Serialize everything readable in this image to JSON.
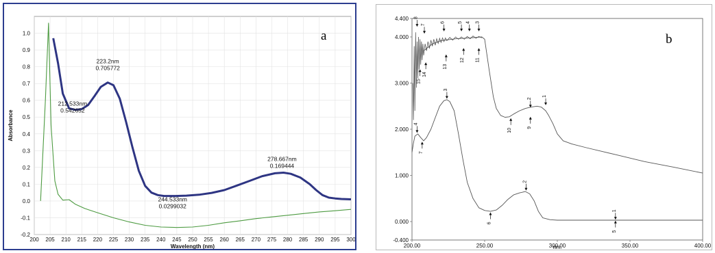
{
  "chart_data": [
    {
      "type": "line",
      "panel_label": "a",
      "xlabel": "Wavelength (nm)",
      "ylabel": "Absorbance",
      "xlim": [
        200,
        300
      ],
      "ylim": [
        -0.2,
        1.1
      ],
      "x_ticks": [
        "200",
        "205",
        "210",
        "215",
        "220",
        "225",
        "230",
        "235",
        "240",
        "245",
        "250",
        "255",
        "260",
        "265",
        "270",
        "275",
        "280",
        "285",
        "290",
        "295",
        "300"
      ],
      "y_ticks": [
        "-0.2",
        "-0.1",
        "0.0",
        "0.1",
        "0.2",
        "0.3",
        "0.4",
        "0.5",
        "0.6",
        "0.7",
        "0.8",
        "0.9",
        "1.0"
      ],
      "grid": true,
      "series": [
        {
          "color": "#2e3583",
          "x": [
            206,
            207.5,
            209,
            211,
            213,
            215,
            217,
            219,
            221,
            223.2,
            225,
            227,
            229,
            231,
            233,
            235,
            237,
            239,
            241,
            244.5,
            248,
            252,
            256,
            260,
            264,
            268,
            272,
            276,
            278.7,
            281,
            284,
            287,
            289,
            291,
            293,
            295,
            297,
            300
          ],
          "y": [
            0.97,
            0.82,
            0.64,
            0.552,
            0.543,
            0.548,
            0.572,
            0.625,
            0.68,
            0.706,
            0.69,
            0.61,
            0.47,
            0.32,
            0.18,
            0.09,
            0.05,
            0.035,
            0.03,
            0.0299,
            0.032,
            0.037,
            0.048,
            0.065,
            0.092,
            0.12,
            0.148,
            0.165,
            0.169,
            0.162,
            0.14,
            0.1,
            0.065,
            0.035,
            0.02,
            0.015,
            0.012,
            0.01
          ]
        },
        {
          "color": "#4c9a40",
          "x": [
            202,
            203.5,
            204.5,
            205.3,
            206.5,
            207.5,
            209,
            211,
            213,
            216,
            220,
            225,
            230,
            235,
            240,
            245,
            250,
            255,
            260,
            265,
            270,
            275,
            280,
            285,
            290,
            295,
            300
          ],
          "y": [
            0.0,
            0.6,
            1.06,
            0.45,
            0.12,
            0.04,
            0.005,
            0.008,
            -0.02,
            -0.045,
            -0.07,
            -0.1,
            -0.125,
            -0.145,
            -0.155,
            -0.158,
            -0.155,
            -0.145,
            -0.13,
            -0.118,
            -0.105,
            -0.095,
            -0.085,
            -0.075,
            -0.065,
            -0.058,
            -0.05
          ]
        }
      ],
      "annotations": [
        {
          "x": 223.2,
          "y": 0.706,
          "lines": [
            "223.2nm",
            "0.705772"
          ]
        },
        {
          "x": 212.533,
          "y": 0.543,
          "lines": [
            "212.533nm",
            "0.542652"
          ]
        },
        {
          "x": 278.667,
          "y": 0.169,
          "lines": [
            "278.667nm",
            "0.169444"
          ]
        },
        {
          "x": 244.533,
          "y": 0.0299,
          "lines": [
            "244.533nm",
            "0.0299032"
          ]
        }
      ]
    },
    {
      "type": "line",
      "panel_label": "b",
      "xlabel": "nm.",
      "xlim": [
        200,
        400
      ],
      "ylim": [
        -0.4,
        4.4
      ],
      "x_ticks": [
        "200.00",
        "250.00",
        "300.00",
        "350.00",
        "400.00"
      ],
      "y_ticks": [
        "-0.400",
        "0.000",
        "1.000",
        "2.000",
        "3.000",
        "4.000",
        "4.400"
      ],
      "grid": false,
      "series": [
        {
          "color": "#555555",
          "x": [
            208,
            214,
            220,
            230,
            240,
            248,
            250,
            253,
            256,
            258,
            261,
            264,
            267,
            270,
            274,
            278,
            282,
            286,
            289,
            292,
            294,
            297,
            300,
            304,
            310,
            320,
            340,
            360,
            380,
            400
          ],
          "y": [
            3.7,
            3.85,
            3.92,
            3.96,
            3.98,
            4.0,
            3.95,
            3.3,
            2.7,
            2.45,
            2.3,
            2.26,
            2.27,
            2.33,
            2.4,
            2.45,
            2.48,
            2.5,
            2.48,
            2.4,
            2.3,
            2.12,
            1.9,
            1.75,
            1.68,
            1.6,
            1.45,
            1.3,
            1.18,
            1.05
          ]
        },
        {
          "color": "#555555",
          "x": [
            200,
            201,
            202,
            204,
            206,
            208,
            210,
            213,
            216,
            219,
            222,
            224,
            226,
            229,
            232,
            235,
            238,
            242,
            246,
            250,
            254,
            258,
            262,
            266,
            270,
            274,
            278,
            281,
            284,
            287,
            290,
            295,
            300,
            310,
            320,
            340,
            360,
            380,
            400
          ],
          "y": [
            1.5,
            1.7,
            1.85,
            1.9,
            1.82,
            1.75,
            1.82,
            2.0,
            2.25,
            2.5,
            2.62,
            2.64,
            2.6,
            2.4,
            1.9,
            1.35,
            0.85,
            0.5,
            0.3,
            0.24,
            0.22,
            0.25,
            0.35,
            0.48,
            0.58,
            0.62,
            0.65,
            0.6,
            0.45,
            0.22,
            0.08,
            0.04,
            0.03,
            0.03,
            0.03,
            0.03,
            0.03,
            0.03,
            0.03
          ]
        }
      ],
      "noise": [
        {
          "x": 200.5,
          "y": 3.0
        },
        {
          "x": 201.0,
          "y": 2.2
        },
        {
          "x": 201.5,
          "y": 3.8
        },
        {
          "x": 202.0,
          "y": 2.4
        },
        {
          "x": 202.5,
          "y": 4.1
        },
        {
          "x": 203.0,
          "y": 2.9
        },
        {
          "x": 203.5,
          "y": 3.9
        },
        {
          "x": 204.0,
          "y": 3.1
        },
        {
          "x": 204.5,
          "y": 4.0
        },
        {
          "x": 205.0,
          "y": 3.3
        },
        {
          "x": 205.5,
          "y": 3.95
        },
        {
          "x": 206.0,
          "y": 3.4
        },
        {
          "x": 206.5,
          "y": 3.9
        },
        {
          "x": 207.0,
          "y": 3.5
        },
        {
          "x": 207.5,
          "y": 3.85
        },
        {
          "x": 208.0,
          "y": 3.6
        },
        {
          "x": 209.0,
          "y": 3.85
        },
        {
          "x": 210.0,
          "y": 3.7
        },
        {
          "x": 211.0,
          "y": 3.9
        },
        {
          "x": 212.0,
          "y": 3.75
        },
        {
          "x": 213.0,
          "y": 3.93
        },
        {
          "x": 214.0,
          "y": 3.8
        },
        {
          "x": 215.0,
          "y": 3.95
        },
        {
          "x": 216.0,
          "y": 3.82
        },
        {
          "x": 217.0,
          "y": 3.96
        },
        {
          "x": 218.0,
          "y": 3.86
        },
        {
          "x": 219.0,
          "y": 3.97
        },
        {
          "x": 220.0,
          "y": 3.88
        },
        {
          "x": 221.0,
          "y": 3.98
        },
        {
          "x": 222.0,
          "y": 3.9
        },
        {
          "x": 223.0,
          "y": 3.98
        },
        {
          "x": 224.0,
          "y": 3.92
        },
        {
          "x": 226.0,
          "y": 3.99
        },
        {
          "x": 228.0,
          "y": 3.93
        },
        {
          "x": 230.0,
          "y": 4.0
        },
        {
          "x": 232.0,
          "y": 3.95
        },
        {
          "x": 234.0,
          "y": 4.0
        },
        {
          "x": 236.0,
          "y": 3.95
        },
        {
          "x": 238.0,
          "y": 4.01
        },
        {
          "x": 240.0,
          "y": 3.96
        },
        {
          "x": 242.0,
          "y": 4.02
        },
        {
          "x": 244.0,
          "y": 3.97
        },
        {
          "x": 246.0,
          "y": 4.01
        },
        {
          "x": 248.0,
          "y": 3.98
        }
      ],
      "peak_markers": [
        {
          "x": 203.5,
          "y": 4.22,
          "label": "8",
          "dir": "down"
        },
        {
          "x": 205.5,
          "y": 3.3,
          "label": "15",
          "dir": "up"
        },
        {
          "x": 208.5,
          "y": 4.07,
          "label": "7",
          "dir": "down"
        },
        {
          "x": 209.5,
          "y": 3.45,
          "label": "14",
          "dir": "up"
        },
        {
          "x": 222.0,
          "y": 4.12,
          "label": "6",
          "dir": "down"
        },
        {
          "x": 223.5,
          "y": 3.62,
          "label": "13",
          "dir": "up"
        },
        {
          "x": 234.0,
          "y": 4.12,
          "label": "5",
          "dir": "down"
        },
        {
          "x": 235.5,
          "y": 3.76,
          "label": "12",
          "dir": "up"
        },
        {
          "x": 239.5,
          "y": 4.12,
          "label": "4",
          "dir": "down"
        },
        {
          "x": 246.0,
          "y": 4.12,
          "label": "3",
          "dir": "down"
        },
        {
          "x": 246.0,
          "y": 3.76,
          "label": "11",
          "dir": "up"
        },
        {
          "x": 203.5,
          "y": 1.92,
          "label": "4",
          "dir": "down"
        },
        {
          "x": 207.0,
          "y": 1.73,
          "label": "7",
          "dir": "up"
        },
        {
          "x": 224.0,
          "y": 2.66,
          "label": "3",
          "dir": "down"
        },
        {
          "x": 268.0,
          "y": 2.24,
          "label": "10",
          "dir": "up"
        },
        {
          "x": 281.5,
          "y": 2.47,
          "label": "2",
          "dir": "down"
        },
        {
          "x": 281.5,
          "y": 2.27,
          "label": "9",
          "dir": "up"
        },
        {
          "x": 292.0,
          "y": 2.52,
          "label": "1",
          "dir": "down"
        },
        {
          "x": 254.0,
          "y": 0.2,
          "label": "6",
          "dir": "up"
        },
        {
          "x": 278.5,
          "y": 0.67,
          "label": "2",
          "dir": "down"
        },
        {
          "x": 340.0,
          "y": 0.04,
          "label": "1",
          "dir": "down"
        },
        {
          "x": 340.0,
          "y": 0.02,
          "label": "5",
          "dir": "up"
        }
      ]
    }
  ]
}
